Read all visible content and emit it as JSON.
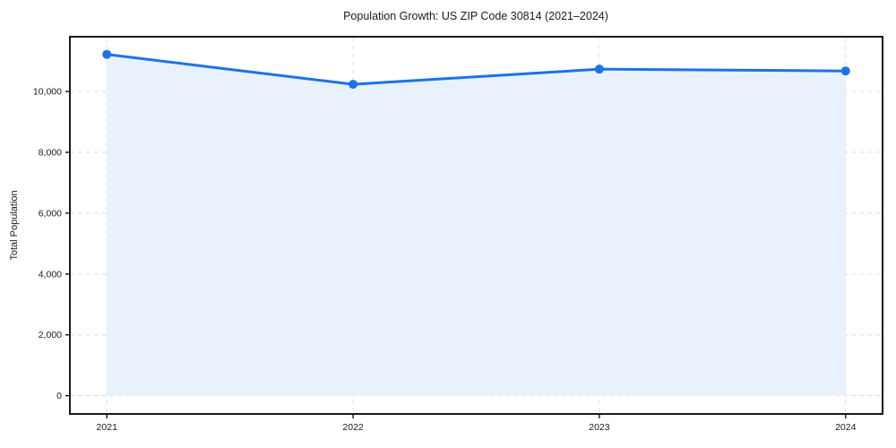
{
  "page": {
    "background": "#ffffff"
  },
  "chart_data": {
    "type": "line",
    "title": "Population Growth: US ZIP Code 30814 (2021–2024)",
    "xlabel": "",
    "ylabel": "Total Population",
    "x": [
      2021,
      2022,
      2023,
      2024
    ],
    "xtick_labels": [
      "2021",
      "2022",
      "2023",
      "2024"
    ],
    "series": [
      {
        "name": "Total Population",
        "values": [
          11220,
          10235,
          10735,
          10675
        ]
      }
    ],
    "yticks": [
      0,
      2000,
      4000,
      6000,
      8000,
      10000
    ],
    "ytick_labels": [
      "0",
      "2,000",
      "4,000",
      "6,000",
      "8,000",
      "10,000"
    ],
    "xlim": [
      2020.85,
      2024.15
    ],
    "ylim": [
      -600,
      11800
    ],
    "grid": true,
    "grid_style": "dashed",
    "legend_position": "none",
    "area_fill_to": 0,
    "colors": {
      "line": "#1a73e8",
      "marker": "#1a73e8",
      "area": "#e9f1fc",
      "grid": "#dedede",
      "spine": "#000000",
      "text": "#1a1a1a"
    }
  }
}
